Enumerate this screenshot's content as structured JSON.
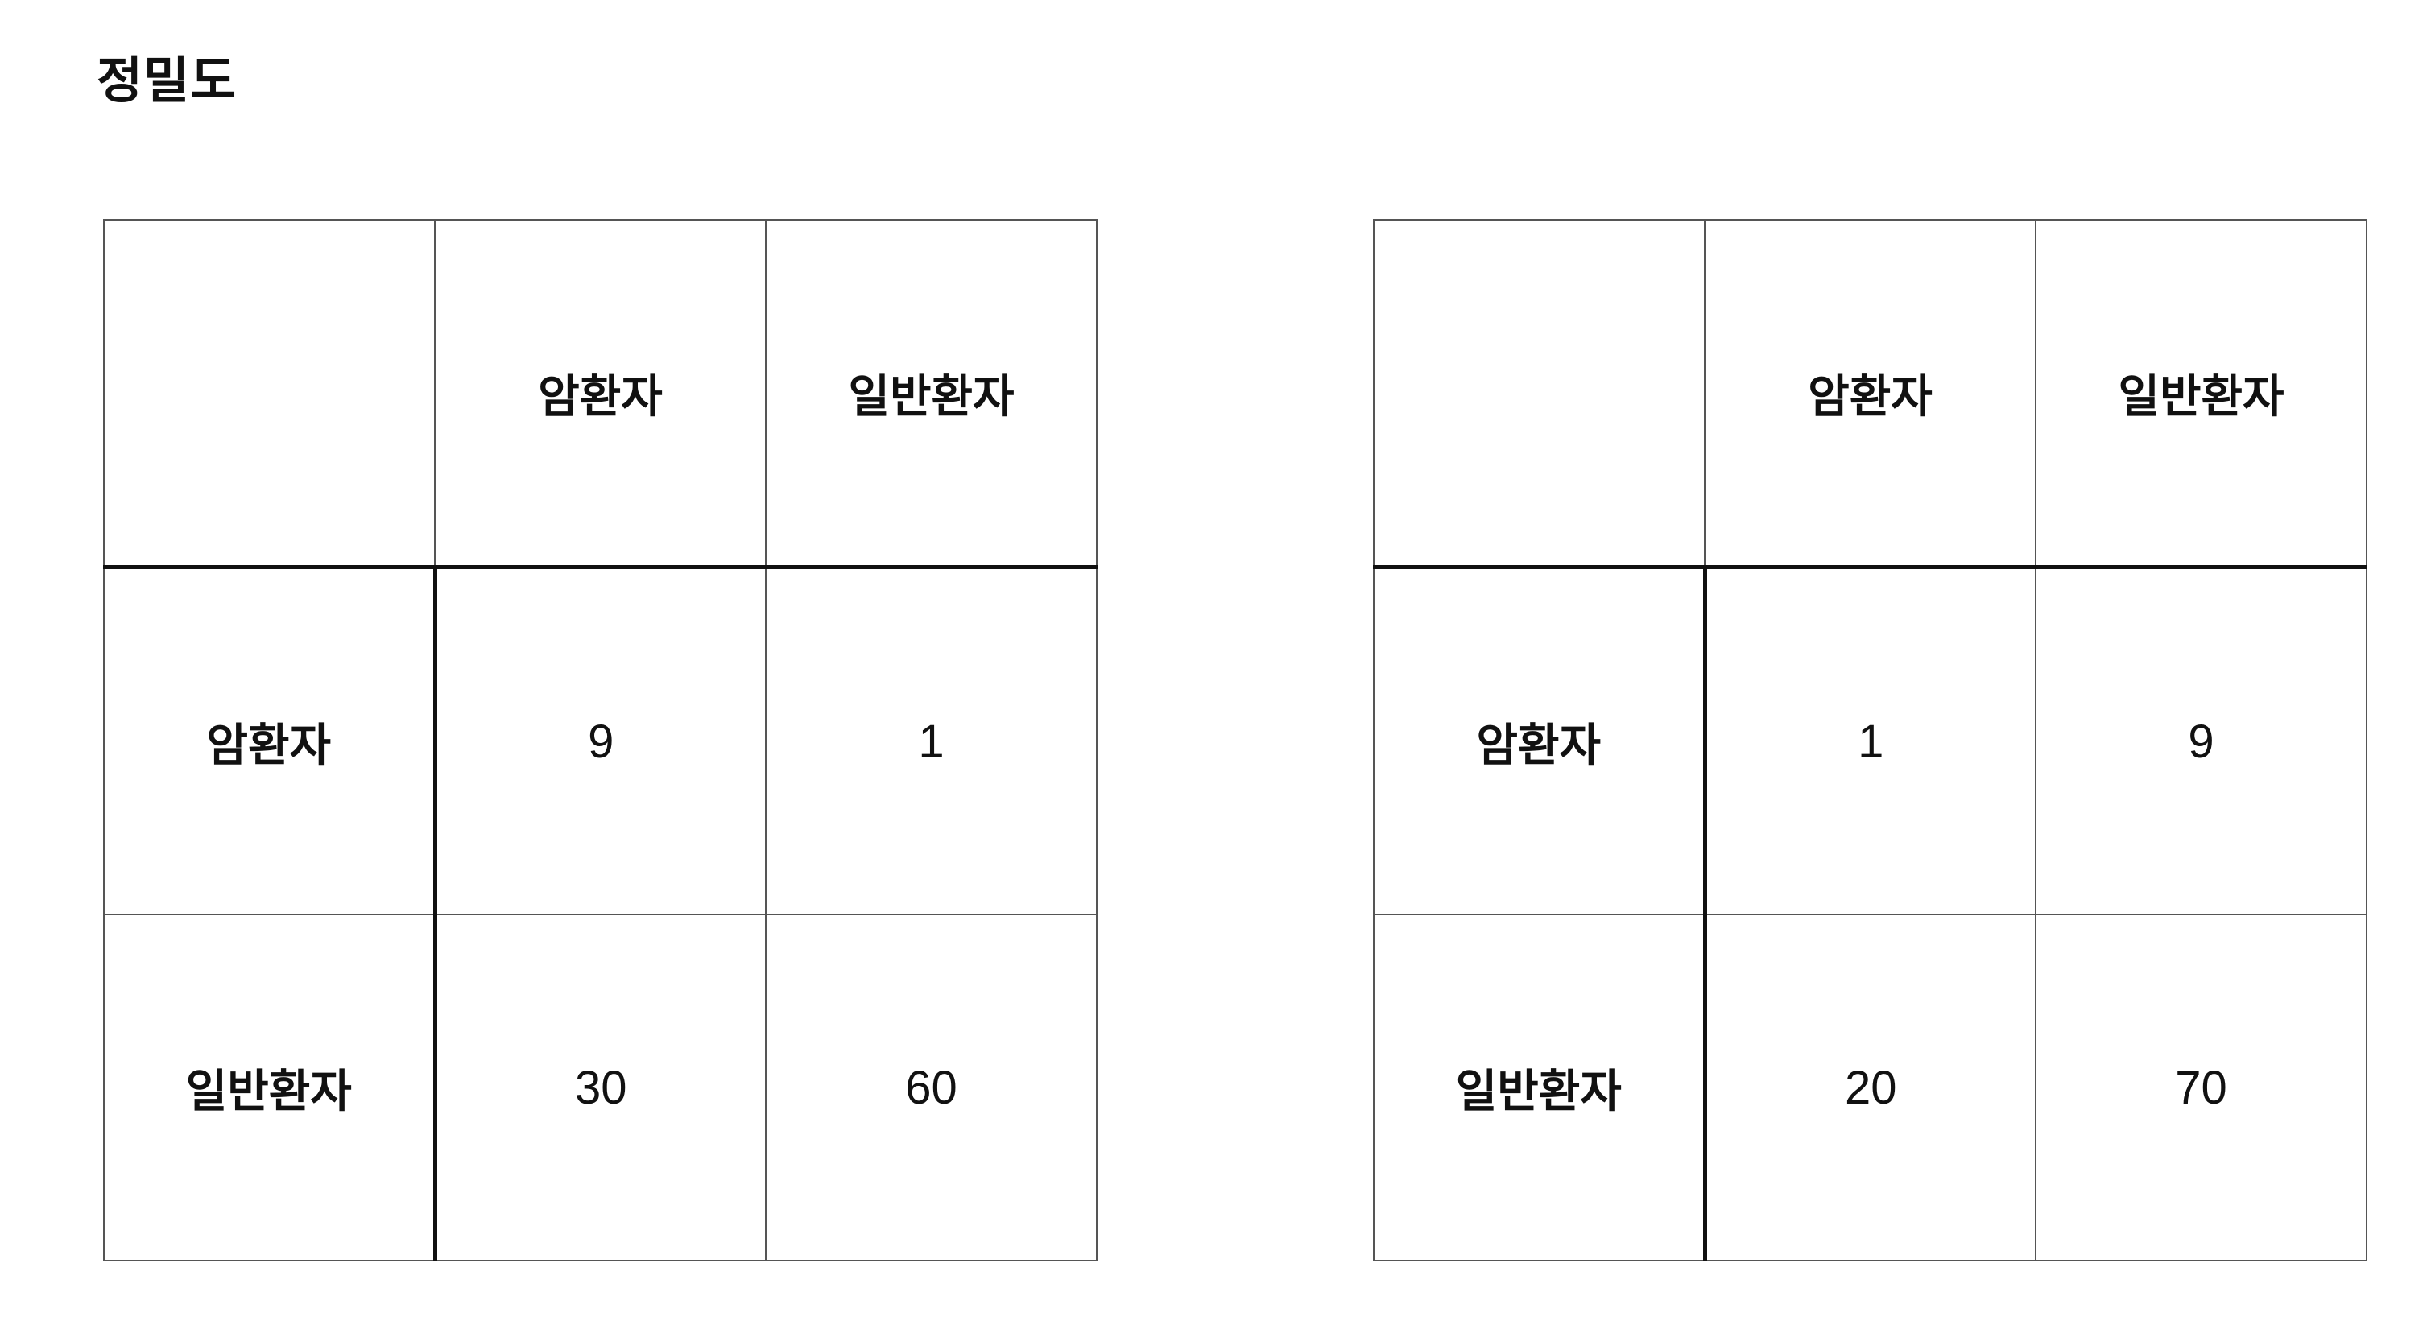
{
  "title": "정밀도",
  "tables": [
    {
      "col_headers": [
        "암환자",
        "일반환자"
      ],
      "rows": [
        {
          "label": "암환자",
          "values": [
            "9",
            "1"
          ]
        },
        {
          "label": "일반환자",
          "values": [
            "30",
            "60"
          ]
        }
      ]
    },
    {
      "col_headers": [
        "암환자",
        "일반환자"
      ],
      "rows": [
        {
          "label": "암환자",
          "values": [
            "1",
            "9"
          ]
        },
        {
          "label": "일반환자",
          "values": [
            "20",
            "70"
          ]
        }
      ]
    }
  ]
}
